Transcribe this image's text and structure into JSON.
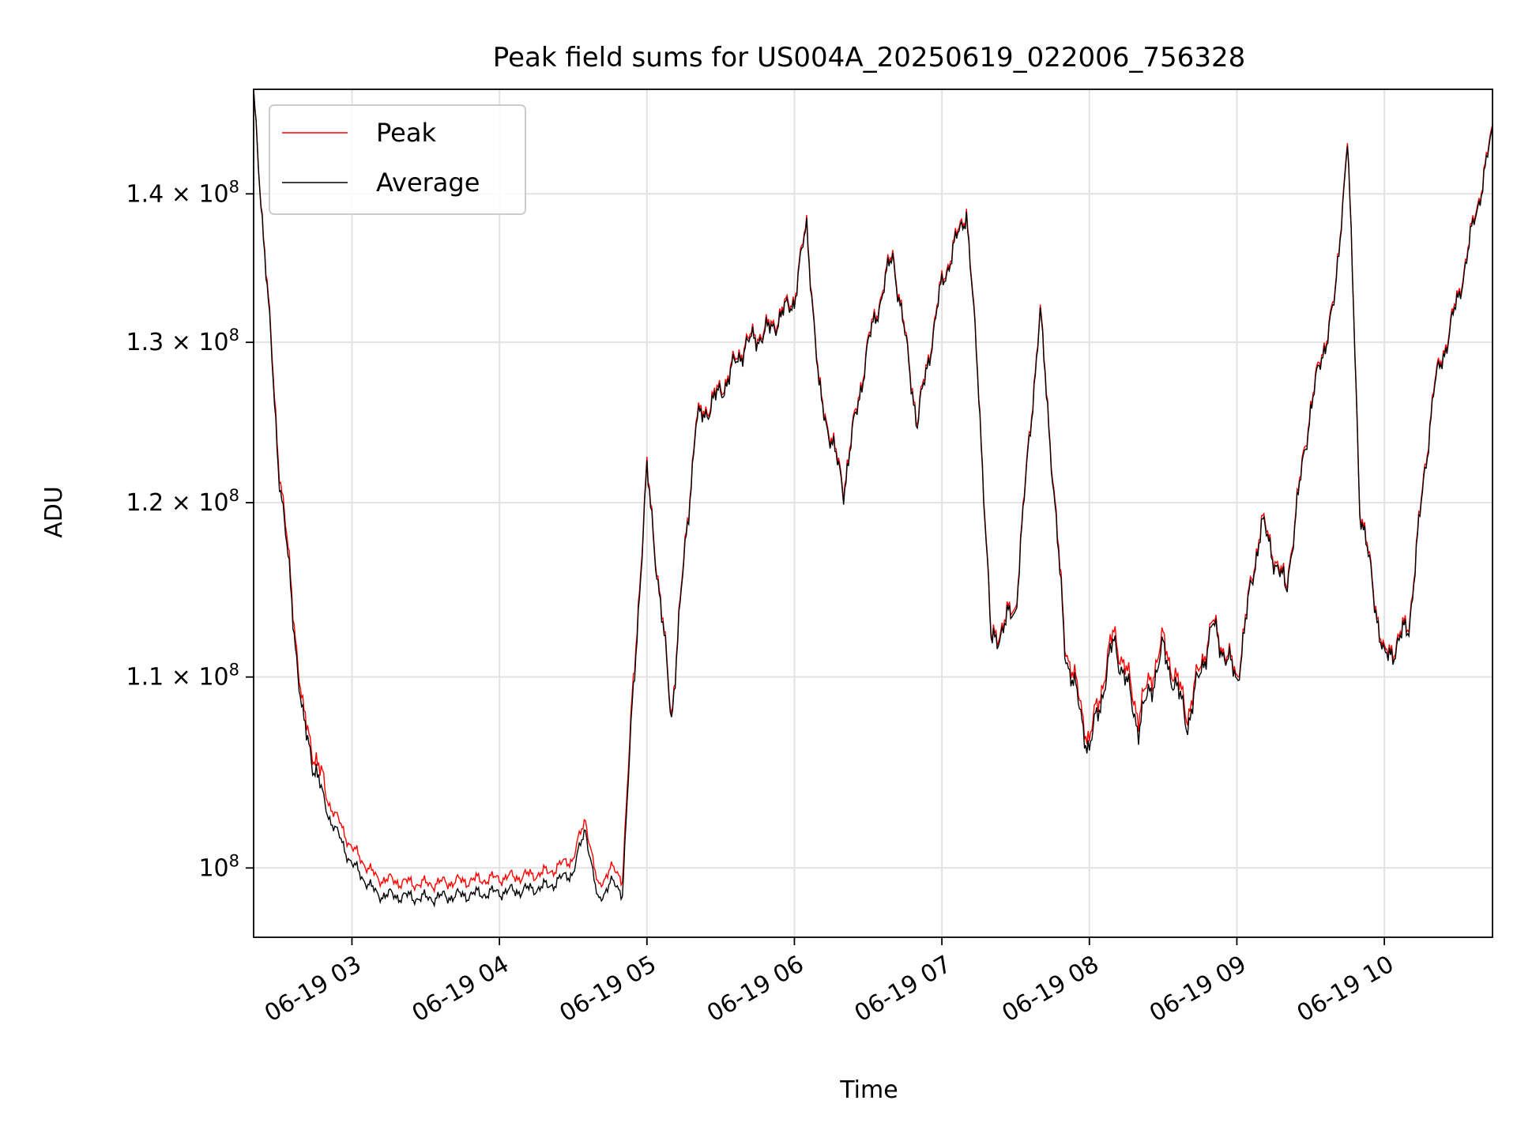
{
  "chart_data": {
    "type": "line",
    "title": "Peak field sums for US004A_20250619_022006_756328",
    "xlabel": "Time",
    "ylabel": "ADU",
    "yscale": "log",
    "grid": true,
    "legend_position": "top-left",
    "xlim": [
      "06-19 02:20",
      "06-19 10:44"
    ],
    "ylim": [
      96600000,
      147500000
    ],
    "x_ticks": [
      "06-19 03",
      "06-19 04",
      "06-19 05",
      "06-19 06",
      "06-19 07",
      "06-19 08",
      "06-19 09",
      "06-19 10"
    ],
    "y_ticks": [
      {
        "value": 100000000,
        "mantissa": "",
        "base": "10",
        "exp": "8"
      },
      {
        "value": 110000000,
        "mantissa": "1.1 × ",
        "base": "10",
        "exp": "8"
      },
      {
        "value": 120000000,
        "mantissa": "1.2 × ",
        "base": "10",
        "exp": "8"
      },
      {
        "value": 130000000,
        "mantissa": "1.3 × ",
        "base": "10",
        "exp": "8"
      },
      {
        "value": 140000000,
        "mantissa": "1.4 × ",
        "base": "10",
        "exp": "8"
      }
    ],
    "x": [
      "06-19 02:20",
      "06-19 02:30",
      "06-19 02:40",
      "06-19 02:50",
      "06-19 03:00",
      "06-19 03:10",
      "06-19 03:20",
      "06-19 03:30",
      "06-19 03:40",
      "06-19 03:50",
      "06-19 04:00",
      "06-19 04:10",
      "06-19 04:20",
      "06-19 04:30",
      "06-19 04:35",
      "06-19 04:40",
      "06-19 04:45",
      "06-19 04:50",
      "06-19 05:00",
      "06-19 05:10",
      "06-19 05:20",
      "06-19 05:30",
      "06-19 05:40",
      "06-19 05:50",
      "06-19 06:00",
      "06-19 06:05",
      "06-19 06:10",
      "06-19 06:20",
      "06-19 06:30",
      "06-19 06:40",
      "06-19 06:50",
      "06-19 07:00",
      "06-19 07:10",
      "06-19 07:15",
      "06-19 07:20",
      "06-19 07:30",
      "06-19 07:40",
      "06-19 07:45",
      "06-19 07:50",
      "06-19 08:00",
      "06-19 08:10",
      "06-19 08:20",
      "06-19 08:30",
      "06-19 08:40",
      "06-19 08:50",
      "06-19 09:00",
      "06-19 09:10",
      "06-19 09:20",
      "06-19 09:30",
      "06-19 09:40",
      "06-19 09:45",
      "06-19 09:50",
      "06-19 10:00",
      "06-19 10:10",
      "06-19 10:20",
      "06-19 10:30",
      "06-19 10:40",
      "06-19 10:44"
    ],
    "series": [
      {
        "name": "Peak",
        "color": "#ff0000",
        "values": [
          147000000,
          123000000,
          108000000,
          103500000,
          101000000,
          99500000,
          99300000,
          99200000,
          99300000,
          99400000,
          99500000,
          99600000,
          99800000,
          100500000,
          102500000,
          99000000,
          100000000,
          99500000,
          122000000,
          108000000,
          125000000,
          127000000,
          130000000,
          131000000,
          133000000,
          138000000,
          127000000,
          121000000,
          130000000,
          136000000,
          125000000,
          134000000,
          139000000,
          127000000,
          112000000,
          114000000,
          132000000,
          122000000,
          112000000,
          106500000,
          112500000,
          108000000,
          112000000,
          108000000,
          113000000,
          110000000,
          119000000,
          115000000,
          126000000,
          133000000,
          144000000,
          120000000,
          111000000,
          113000000,
          127000000,
          133000000,
          141000000,
          144500000
        ]
      },
      {
        "name": "Average",
        "color": "#000000",
        "values": [
          147000000,
          122500000,
          107500000,
          102800000,
          100200000,
          98700000,
          98600000,
          98500000,
          98600000,
          98700000,
          98800000,
          98900000,
          99100000,
          99800000,
          102000000,
          98300000,
          99300000,
          98800000,
          121800000,
          107800000,
          124800000,
          126800000,
          129800000,
          130800000,
          132800000,
          137800000,
          126800000,
          120800000,
          129800000,
          135800000,
          124800000,
          133800000,
          138800000,
          126800000,
          111800000,
          113800000,
          131800000,
          121800000,
          111600000,
          106000000,
          112000000,
          107300000,
          111500000,
          107500000,
          112800000,
          109800000,
          118800000,
          114800000,
          125800000,
          132800000,
          143800000,
          119800000,
          110800000,
          112800000,
          126800000,
          132800000,
          140800000,
          144300000
        ]
      }
    ]
  }
}
